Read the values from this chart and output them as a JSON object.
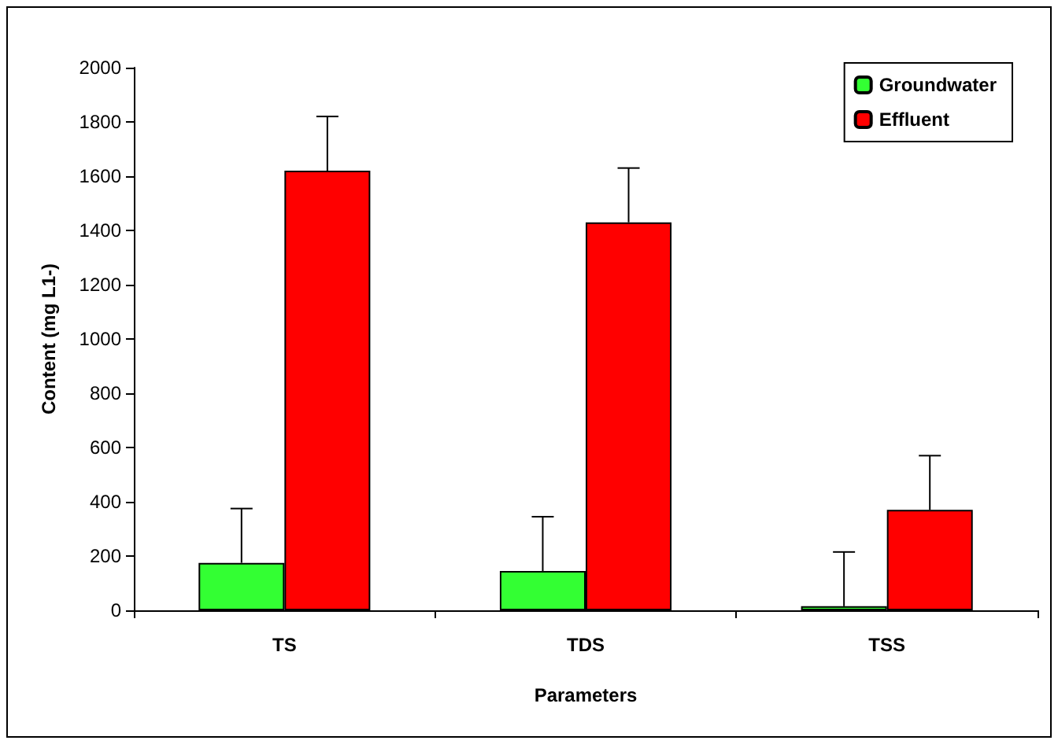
{
  "chart_data": {
    "type": "bar",
    "xlabel": "Parameters",
    "ylabel": "Content (mg L1-)",
    "categories": [
      "TS",
      "TDS",
      "TSS"
    ],
    "series": [
      {
        "name": "Groundwater",
        "color": "#33ff33",
        "values": [
          175,
          145,
          15
        ],
        "errors": [
          [
            175,
            375
          ],
          [
            145,
            345
          ],
          [
            15,
            215
          ]
        ]
      },
      {
        "name": "Effluent",
        "color": "#ff0000",
        "values": [
          1620,
          1430,
          370
        ],
        "errors": [
          [
            1620,
            1820
          ],
          [
            1430,
            1630
          ],
          [
            370,
            570
          ]
        ]
      }
    ],
    "ylim": [
      0,
      2000
    ],
    "yticks": [
      0,
      200,
      400,
      600,
      800,
      1000,
      1200,
      1400,
      1600,
      1800,
      2000
    ],
    "grid": false,
    "legend": "top right"
  }
}
